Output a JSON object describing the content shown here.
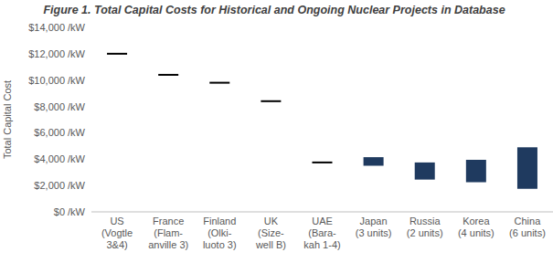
{
  "chart_data": {
    "type": "floating_bar",
    "title": "Figure 1. Total Capital Costs for Historical and Ongoing Nuclear Projects in Database",
    "y_label": "Total Capital Cost",
    "categories": [
      "US\n(Vogtle\n3&4)",
      "France\n(Flam-\nanville 3)",
      "Finland\n(Olki-\nluoto 3)",
      "UK\n(Size-\nwell B)",
      "UAE\n(Bara-\nkah 1-4)",
      "Japan\n(3 units)",
      "Russia\n(2 units)",
      "Korea\n(4 units)",
      "China\n(6 units)"
    ],
    "low": [
      12000,
      10400,
      9800,
      8400,
      3750,
      3500,
      2450,
      2250,
      1750
    ],
    "high": [
      12000,
      10400,
      9800,
      8400,
      3750,
      4150,
      3750,
      3950,
      4900
    ],
    "colors": [
      "#000000",
      "#000000",
      "#000000",
      "#000000",
      "#000000",
      "#1f3a5f",
      "#1f3a5f",
      "#1f3a5f",
      "#1f3a5f"
    ],
    "ylim": [
      0,
      14000
    ],
    "yticks": [
      {
        "value": 0,
        "label": "$0 /kW"
      },
      {
        "value": 2000,
        "label": "$2,000 /kW"
      },
      {
        "value": 4000,
        "label": "$4,000 /kW"
      },
      {
        "value": 6000,
        "label": "$6,000 /kW"
      },
      {
        "value": 8000,
        "label": "$8,000 /kW"
      },
      {
        "value": 10000,
        "label": "$10,000 /kW"
      },
      {
        "value": 12000,
        "label": "$12,000 /kW"
      },
      {
        "value": 14000,
        "label": "$14,000 /kW"
      }
    ],
    "grid": false
  }
}
